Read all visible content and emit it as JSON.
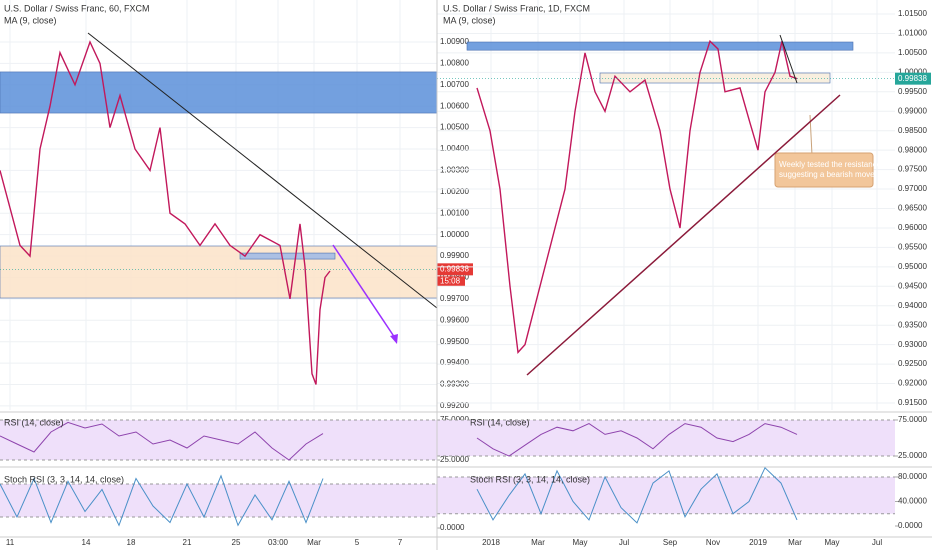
{
  "chart_data": [
    {
      "type": "line",
      "title": "U.S. Dollar / Swiss Franc, 60, FXCM",
      "subtitle": "MA (9, close)",
      "color": "#c2185b",
      "grid": true,
      "x": [
        0,
        20,
        30,
        40,
        50,
        60,
        75,
        90,
        100,
        110,
        120,
        135,
        150,
        160,
        170,
        185,
        200,
        215,
        230,
        245,
        260,
        280,
        290,
        300,
        305,
        312,
        316,
        320,
        325,
        330
      ],
      "values": [
        1.003,
        0.9995,
        0.999,
        1.004,
        1.006,
        1.0085,
        1.007,
        1.009,
        1.008,
        1.005,
        1.0065,
        1.004,
        1.003,
        1.005,
        1.001,
        1.0005,
        0.9995,
        1.0005,
        0.9995,
        0.999,
        1.0,
        0.9995,
        0.997,
        1.0005,
        0.9985,
        0.9935,
        0.993,
        0.9965,
        0.998,
        0.9983
      ],
      "xlim": [
        0,
        437
      ],
      "xticks": [
        {
          "value": 10,
          "label": "11"
        },
        {
          "value": 86,
          "label": "14"
        },
        {
          "value": 131,
          "label": "18"
        },
        {
          "value": 187,
          "label": "21"
        },
        {
          "value": 236,
          "label": "25"
        },
        {
          "value": 278,
          "label": "03:00"
        },
        {
          "value": 314,
          "label": "Mar"
        },
        {
          "value": 357,
          "label": "5"
        },
        {
          "value": 400,
          "label": "7"
        }
      ],
      "ylim": [
        0.99181,
        1.01096
      ],
      "yticks": [
        {
          "value": 0.992,
          "label": "0.99200"
        },
        {
          "value": 0.993,
          "label": "0.99300"
        },
        {
          "value": 0.994,
          "label": "0.99400"
        },
        {
          "value": 0.995,
          "label": "0.99500"
        },
        {
          "value": 0.996,
          "label": "0.99600"
        },
        {
          "value": 0.997,
          "label": "0.99700"
        },
        {
          "value": 0.998,
          "label": "0.99800"
        },
        {
          "value": 0.999,
          "label": "0.99900"
        },
        {
          "value": 1.0,
          "label": "1.00000"
        },
        {
          "value": 1.001,
          "label": "1.00100"
        },
        {
          "value": 1.002,
          "label": "1.00200"
        },
        {
          "value": 1.003,
          "label": "1.00300"
        },
        {
          "value": 1.004,
          "label": "1.00400"
        },
        {
          "value": 1.005,
          "label": "1.00500"
        },
        {
          "value": 1.006,
          "label": "1.00600"
        },
        {
          "value": 1.007,
          "label": "1.00700"
        },
        {
          "value": 1.008,
          "label": "1.00800"
        },
        {
          "value": 1.009,
          "label": "1.00900"
        }
      ],
      "zones": [
        {
          "range": [
            1.00568,
            1.0076
          ],
          "color": "#5b8fd9"
        },
        {
          "range": [
            0.99704,
            0.99947
          ],
          "color": "#fbe3c8"
        },
        {
          "range": [
            0.99886,
            0.99914
          ],
          "color": "#9db9e8"
        }
      ],
      "last_price": 0.99838,
      "last_price_label": "0.99838",
      "countdown": "15:08"
    },
    {
      "type": "line",
      "title": "U.S. Dollar / Swiss Franc, 1D, FXCM",
      "subtitle": "MA (9, close)",
      "color": "#c2185b",
      "grid": true,
      "x": [
        477,
        490,
        500,
        510,
        518,
        525,
        535,
        550,
        565,
        575,
        585,
        595,
        605,
        615,
        630,
        645,
        660,
        670,
        680,
        690,
        700,
        710,
        718,
        725,
        740,
        750,
        758,
        765,
        775,
        782,
        790,
        797
      ],
      "values": [
        0.996,
        0.985,
        0.97,
        0.945,
        0.928,
        0.93,
        0.94,
        0.955,
        0.97,
        0.99,
        1.005,
        0.995,
        0.99,
        0.999,
        0.995,
        0.998,
        0.985,
        0.97,
        0.96,
        0.985,
        1.0,
        1.008,
        1.006,
        0.995,
        0.996,
        0.987,
        0.98,
        0.995,
        1.0,
        1.008,
        0.999,
        0.9984
      ],
      "xlim": [
        437,
        895
      ],
      "xticks": [
        {
          "value": 491,
          "label": "2018"
        },
        {
          "value": 538,
          "label": "Mar"
        },
        {
          "value": 580,
          "label": "May"
        },
        {
          "value": 624,
          "label": "Jul"
        },
        {
          "value": 670,
          "label": "Sep"
        },
        {
          "value": 713,
          "label": "Nov"
        },
        {
          "value": 758,
          "label": "2019"
        },
        {
          "value": 795,
          "label": "Mar"
        },
        {
          "value": 832,
          "label": "May"
        },
        {
          "value": 877,
          "label": "Jul"
        }
      ],
      "ylim": [
        0.9132,
        1.0186
      ],
      "yticks": [
        {
          "value": 0.915,
          "label": "0.91500"
        },
        {
          "value": 0.92,
          "label": "0.92000"
        },
        {
          "value": 0.925,
          "label": "0.92500"
        },
        {
          "value": 0.93,
          "label": "0.93000"
        },
        {
          "value": 0.935,
          "label": "0.93500"
        },
        {
          "value": 0.94,
          "label": "0.94000"
        },
        {
          "value": 0.945,
          "label": "0.94500"
        },
        {
          "value": 0.95,
          "label": "0.95000"
        },
        {
          "value": 0.955,
          "label": "0.95500"
        },
        {
          "value": 0.96,
          "label": "0.96000"
        },
        {
          "value": 0.965,
          "label": "0.96500"
        },
        {
          "value": 0.97,
          "label": "0.97000"
        },
        {
          "value": 0.975,
          "label": "0.97500"
        },
        {
          "value": 0.98,
          "label": "0.98000"
        },
        {
          "value": 0.985,
          "label": "0.98500"
        },
        {
          "value": 0.99,
          "label": "0.99000"
        },
        {
          "value": 0.995,
          "label": "0.99500"
        },
        {
          "value": 1.0,
          "label": "1.00000"
        },
        {
          "value": 1.005,
          "label": "1.00500"
        },
        {
          "value": 1.01,
          "label": "1.01000"
        },
        {
          "value": 1.015,
          "label": "1.01500"
        }
      ],
      "zones": [
        {
          "range": [
            1.0057,
            1.0078
          ],
          "color": "#5b8fd9"
        },
        {
          "range": [
            0.99726,
            0.99983
          ],
          "color": "#f7ecd9"
        }
      ],
      "last_price": 0.99838,
      "last_price_label": "0.99838",
      "annotation": "Weekly tested the resistance, suggesting a bearish move"
    },
    {
      "type": "line",
      "title": "RSI (14, close)",
      "color": "#8e44ad",
      "x": [
        0,
        17,
        34,
        51,
        68,
        85,
        102,
        119,
        136,
        153,
        170,
        187,
        204,
        221,
        238,
        255,
        272,
        289,
        306,
        323
      ],
      "values": [
        55,
        45,
        35,
        60,
        72,
        65,
        70,
        55,
        60,
        45,
        50,
        40,
        55,
        50,
        45,
        60,
        40,
        25,
        45,
        58
      ],
      "xlim": [
        0,
        437
      ],
      "ylim": [
        18.75,
        83.75
      ],
      "band": [
        25,
        75
      ],
      "yticks": [
        {
          "value": 75,
          "label": "75.0000"
        },
        {
          "value": 50,
          "label": "50.0000"
        },
        {
          "value": 25,
          "label": "25.0000"
        }
      ]
    },
    {
      "type": "line",
      "title": "RSI (14, close)",
      "color": "#8e44ad",
      "x": [
        477,
        493,
        509,
        525,
        541,
        557,
        573,
        589,
        605,
        621,
        637,
        653,
        669,
        685,
        701,
        717,
        733,
        749,
        765,
        781,
        797
      ],
      "values": [
        50,
        35,
        25,
        40,
        55,
        65,
        60,
        70,
        55,
        60,
        50,
        35,
        55,
        70,
        65,
        50,
        45,
        55,
        70,
        65,
        55
      ],
      "xlim": [
        437,
        895
      ],
      "ylim": [
        12.5,
        84.7
      ],
      "band": [
        25,
        75
      ],
      "yticks": [
        {
          "value": 75,
          "label": "75.0000"
        },
        {
          "value": 25,
          "label": "25.0000"
        }
      ]
    },
    {
      "type": "line",
      "title": "Stoch RSI (3, 3, 14, 14, close)",
      "color": "#4a90c8",
      "x": [
        0,
        17,
        34,
        51,
        68,
        85,
        102,
        119,
        136,
        153,
        170,
        187,
        204,
        221,
        238,
        255,
        272,
        289,
        306,
        323
      ],
      "values": [
        80,
        20,
        90,
        10,
        85,
        30,
        70,
        5,
        90,
        40,
        10,
        80,
        20,
        95,
        5,
        60,
        15,
        85,
        10,
        90
      ],
      "xlim": [
        0,
        437
      ],
      "ylim": [
        -12.7,
        105.5
      ],
      "band": [
        20,
        80
      ],
      "yticks": [
        {
          "value": 80,
          "label": "80.0000"
        },
        {
          "value": 40,
          "label": "40.0000"
        },
        {
          "value": 0,
          "label": "0.0000"
        }
      ]
    },
    {
      "type": "line",
      "title": "Stoch RSI (3, 3, 14, 14, close)",
      "color": "#4a90c8",
      "x": [
        477,
        493,
        509,
        525,
        541,
        557,
        573,
        589,
        605,
        621,
        637,
        653,
        669,
        685,
        701,
        717,
        733,
        749,
        765,
        781,
        797
      ],
      "values": [
        60,
        10,
        50,
        85,
        20,
        90,
        40,
        10,
        80,
        30,
        5,
        70,
        90,
        15,
        60,
        85,
        20,
        40,
        95,
        70,
        10
      ],
      "xlim": [
        437,
        895
      ],
      "ylim": [
        -14.7,
        91.4
      ],
      "band": [
        20,
        80
      ],
      "yticks": [
        {
          "value": 80,
          "label": "80.0000"
        },
        {
          "value": 40,
          "label": "40.0000"
        },
        {
          "value": 0,
          "label": "0.0000"
        }
      ]
    }
  ]
}
